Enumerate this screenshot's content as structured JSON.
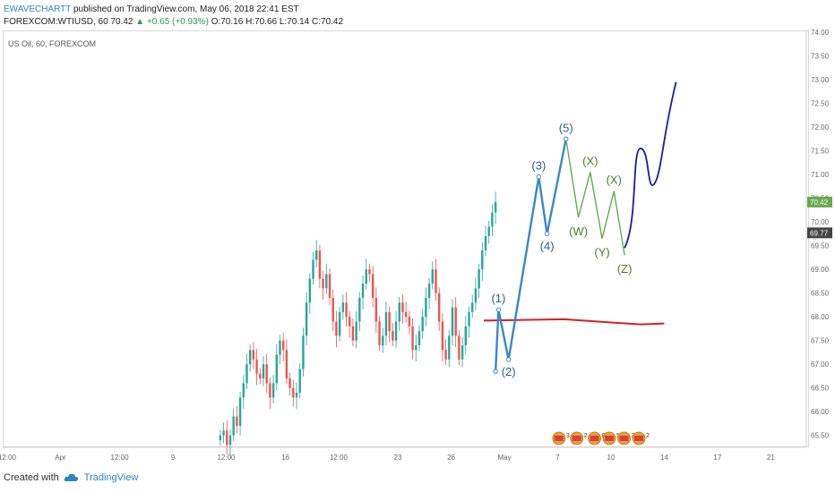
{
  "header": {
    "author": "EWAVECHARTT",
    "published": "published on TradingView.com, May 06, 2018 22:41 EST"
  },
  "quote": {
    "symbol": "FOREXCOM:WTIUSD, 60",
    "last": "70.42",
    "change": "▲ +0.65 (+0.93%)",
    "o_label": "O:",
    "o": "70.16",
    "h_label": "H:",
    "h": "70.66",
    "l_label": "L:",
    "l": "70.14",
    "c_label": "C:",
    "c": "70.42"
  },
  "pane_label": "US Oil, 60, FOREXCOM",
  "footer": {
    "created_with": "Created with",
    "brand": "TradingView"
  },
  "colors": {
    "bull": "#26a69a",
    "bear": "#ef5350",
    "impulse": "#3a87c8",
    "corrective": "#6aa84f",
    "projection": "#1a1aaa",
    "ma_line": "#d62020",
    "last_price_badge": "#6aa84f",
    "prev_price_badge": "#444444"
  },
  "chart_data": {
    "type": "candlestick",
    "y_axis": {
      "min": 65.25,
      "max": 74.0,
      "ticks": [
        "74.00",
        "73.50",
        "73.00",
        "72.50",
        "72.00",
        "71.50",
        "71.00",
        "70.50",
        "70.00",
        "69.50",
        "69.00",
        "68.50",
        "68.00",
        "67.50",
        "67.00",
        "66.50",
        "66.00",
        "65.50"
      ],
      "tick_values": [
        74,
        73.5,
        73,
        72.5,
        72,
        71.5,
        71,
        70.5,
        70,
        69.5,
        69,
        68.5,
        68,
        67.5,
        67,
        66.5,
        66,
        65.5
      ],
      "price_badges": [
        {
          "label": "70.42",
          "value": 70.42,
          "style": "last"
        },
        {
          "label": "69.77",
          "value": 69.77,
          "style": "prev"
        }
      ]
    },
    "x_axis": {
      "labels": [
        "12:00",
        "Apr",
        "12:00",
        "9",
        "12:00",
        "16",
        "12:00",
        "23",
        "26",
        "May",
        "7",
        "10",
        "14",
        "17",
        "21"
      ],
      "label_index": [
        0,
        9,
        19,
        28,
        37,
        47,
        56,
        66,
        75,
        84,
        93,
        102,
        111,
        120,
        129
      ]
    },
    "candles_approx_close": [
      65.5,
      65.6,
      65.3,
      65.5,
      65.9,
      65.7,
      66.3,
      66.6,
      67.0,
      67.3,
      67.1,
      66.8,
      66.7,
      67.0,
      66.6,
      66.3,
      66.6,
      67.2,
      67.5,
      67.3,
      66.7,
      66.5,
      66.3,
      66.4,
      66.9,
      67.6,
      68.3,
      68.8,
      69.2,
      69.4,
      68.8,
      68.6,
      68.9,
      68.4,
      67.9,
      67.6,
      68.1,
      68.3,
      68.0,
      67.8,
      67.5,
      67.9,
      68.4,
      68.7,
      69.0,
      68.9,
      68.4,
      67.9,
      67.4,
      67.6,
      68.1,
      67.7,
      67.5,
      67.9,
      68.3,
      68.1,
      68.0,
      67.8,
      67.3,
      67.4,
      67.7,
      68.0,
      68.4,
      68.7,
      69.0,
      68.5,
      67.9,
      67.3,
      67.1,
      67.6,
      68.2,
      67.6,
      67.1,
      67.4,
      67.8,
      68.1,
      68.3,
      68.6,
      69.0,
      69.4,
      69.7,
      69.9,
      70.2,
      70.42
    ],
    "wave_count": {
      "impulse_labels": [
        "(1)",
        "(2)",
        "(3)",
        "(4)",
        "(5)"
      ],
      "impulse_points": [
        {
          "x": 82.5,
          "y": 66.85
        },
        {
          "x": 83.0,
          "y": 68.15
        },
        {
          "x": 84.7,
          "y": 67.1
        },
        {
          "x": 89.8,
          "y": 70.95
        },
        {
          "x": 91.2,
          "y": 69.75
        },
        {
          "x": 94.4,
          "y": 71.75
        }
      ],
      "corrective_labels": [
        "(W)",
        "(X)",
        "(Y)",
        "(X)",
        "(Z)"
      ],
      "corrective_points": [
        {
          "x": 94.4,
          "y": 71.75
        },
        {
          "x": 96.5,
          "y": 70.1
        },
        {
          "x": 98.5,
          "y": 71.05
        },
        {
          "x": 100.5,
          "y": 69.65
        },
        {
          "x": 102.5,
          "y": 70.65
        },
        {
          "x": 104.3,
          "y": 69.3
        }
      ],
      "projection_points": [
        {
          "x": 104.3,
          "y": 69.45
        },
        {
          "x": 107.0,
          "y": 71.55
        },
        {
          "x": 109.3,
          "y": 70.8
        },
        {
          "x": 113.0,
          "y": 72.95
        }
      ]
    },
    "moving_average": {
      "points": [
        {
          "x": 80.5,
          "y": 67.92
        },
        {
          "x": 94.0,
          "y": 67.95
        },
        {
          "x": 102.0,
          "y": 67.88
        },
        {
          "x": 107.0,
          "y": 67.84
        },
        {
          "x": 111.0,
          "y": 67.86
        }
      ]
    },
    "event_icons": [
      {
        "label": "3",
        "x": 92
      },
      {
        "label": "2",
        "x": 95
      },
      {
        "label": "8",
        "x": 98
      },
      {
        "label": "5",
        "x": 100.5
      },
      {
        "label": "342",
        "x": 103
      },
      {
        "label": "2",
        "x": 105.5
      }
    ]
  }
}
